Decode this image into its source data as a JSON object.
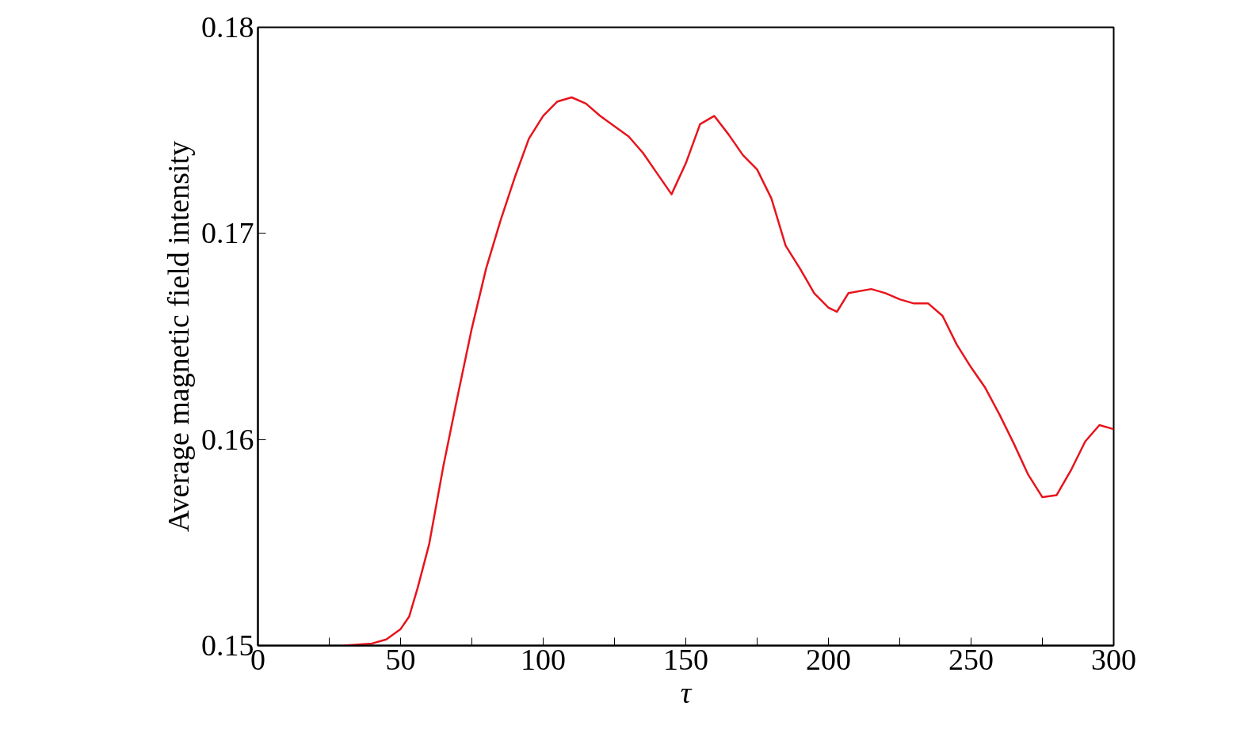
{
  "chart_data": {
    "type": "line",
    "xlabel": "τ",
    "ylabel": "Average magnetic field intensity",
    "x": [
      30,
      40,
      45,
      50,
      53,
      56,
      60,
      65,
      70,
      75,
      80,
      85,
      90,
      95,
      100,
      105,
      110,
      115,
      120,
      125,
      130,
      135,
      140,
      145,
      150,
      155,
      160,
      165,
      170,
      175,
      180,
      185,
      190,
      195,
      200,
      203,
      207,
      215,
      220,
      225,
      230,
      235,
      240,
      245,
      250,
      255,
      260,
      265,
      270,
      275,
      280,
      285,
      290,
      295,
      300
    ],
    "series": [
      {
        "color": "#e8141c",
        "values": [
          0.15,
          0.1501,
          0.1503,
          0.1508,
          0.1514,
          0.1528,
          0.1549,
          0.1587,
          0.1621,
          0.1654,
          0.1683,
          0.1706,
          0.1727,
          0.1746,
          0.1757,
          0.1764,
          0.1766,
          0.1763,
          0.1757,
          0.1752,
          0.1747,
          0.1739,
          0.1729,
          0.1719,
          0.1734,
          0.1753,
          0.1757,
          0.1748,
          0.1738,
          0.1731,
          0.1717,
          0.1694,
          0.1683,
          0.1671,
          0.1664,
          0.1662,
          0.1671,
          0.1673,
          0.1671,
          0.1668,
          0.1666,
          0.1666,
          0.166,
          0.1646,
          0.1635,
          0.1625,
          0.1612,
          0.1598,
          0.1583,
          0.1572,
          0.1573,
          0.1585,
          0.1599,
          0.1607,
          0.1605
        ]
      }
    ],
    "xlim": [
      0,
      300
    ],
    "ylim": [
      0.15,
      0.18
    ],
    "xticks": [
      0,
      {
        "value": 25,
        "label": null
      },
      50,
      {
        "value": 75,
        "label": null
      },
      100,
      {
        "value": 125,
        "label": null
      },
      150,
      {
        "value": 175,
        "label": null
      },
      200,
      {
        "value": 225,
        "label": null
      },
      250,
      {
        "value": 275,
        "label": null
      },
      300
    ],
    "yticks": [
      {
        "value": 0.15,
        "label": "0.15"
      },
      {
        "value": 0.16,
        "label": "0.16"
      },
      {
        "value": 0.17,
        "label": "0.17"
      },
      {
        "value": 0.18,
        "label": "0.18"
      }
    ],
    "grid": false,
    "marker": "none",
    "line_style": "solid"
  }
}
